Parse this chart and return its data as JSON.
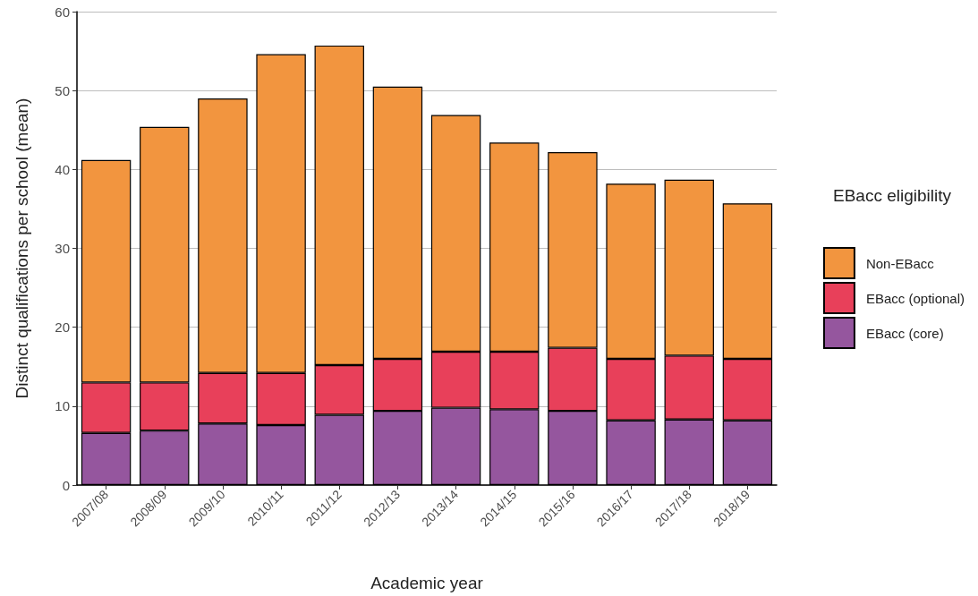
{
  "chart_data": {
    "type": "bar",
    "stacked": true,
    "xlabel": "Academic year",
    "ylabel": "Distinct qualifications per school (mean)",
    "legend_title": "EBacc eligibility",
    "categories": [
      "2007/08",
      "2008/09",
      "2009/10",
      "2010/11",
      "2011/12",
      "2012/13",
      "2013/14",
      "2014/15",
      "2015/16",
      "2016/17",
      "2017/18",
      "2018/19"
    ],
    "series": [
      {
        "name": "EBacc (core)",
        "color": "#95569e",
        "values": [
          6.6,
          6.9,
          7.8,
          7.6,
          8.9,
          9.4,
          9.8,
          9.6,
          9.4,
          8.2,
          8.3,
          8.2
        ]
      },
      {
        "name": "EBacc (optional)",
        "color": "#e8405a",
        "values": [
          6.4,
          6.1,
          6.4,
          6.6,
          6.3,
          6.6,
          7.1,
          7.3,
          8.0,
          7.8,
          8.1,
          7.8
        ]
      },
      {
        "name": "Non-EBacc",
        "color": "#f2953f",
        "values": [
          28.2,
          32.4,
          34.8,
          40.4,
          40.5,
          34.5,
          30.0,
          26.5,
          24.8,
          22.2,
          22.3,
          19.7
        ]
      }
    ],
    "ylim": [
      0,
      60
    ],
    "yticks": [
      0,
      10,
      20,
      30,
      40,
      50,
      60
    ],
    "grid": "y",
    "legend": "right"
  }
}
